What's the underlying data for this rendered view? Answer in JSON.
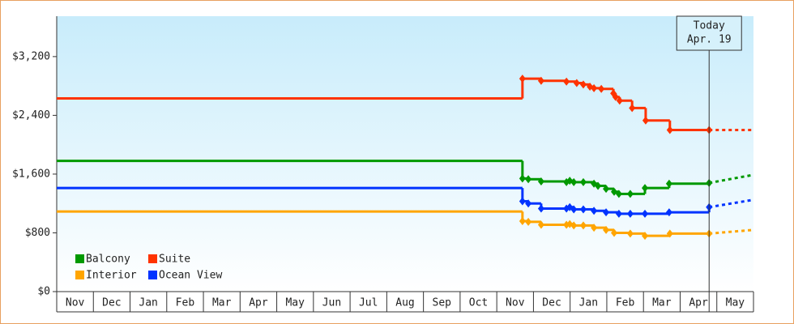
{
  "chart_data": {
    "type": "step-line",
    "months": [
      "Nov",
      "Dec",
      "Jan",
      "Feb",
      "Mar",
      "Apr",
      "May",
      "Jun",
      "Jul",
      "Aug",
      "Sep",
      "Oct",
      "Nov",
      "Dec",
      "Jan",
      "Feb",
      "Mar",
      "Apr",
      "May"
    ],
    "xlim": [
      0,
      19
    ],
    "xticks": [
      0,
      1,
      2,
      3,
      4,
      5,
      6,
      7,
      8,
      9,
      10,
      11,
      12,
      13,
      14,
      15,
      16,
      17,
      18,
      19
    ],
    "ylim": [
      0,
      3750
    ],
    "yticks": [
      {
        "value": 0,
        "label": "$0"
      },
      {
        "value": 800,
        "label": "$800"
      },
      {
        "value": 1600,
        "label": "$1,600"
      },
      {
        "value": 2400,
        "label": "$2,400"
      },
      {
        "value": 3200,
        "label": "$3,200"
      }
    ],
    "annotation": {
      "x": 17.79,
      "lines": [
        "Today",
        "Apr. 19"
      ]
    },
    "series": [
      {
        "name": "Balcony",
        "color": "#009900",
        "x": [
          0,
          12.7,
          12.86,
          13.21,
          13.9,
          13.99,
          14.1,
          14.36,
          14.65,
          14.76,
          14.98,
          15.2,
          15.33,
          15.64,
          16.04,
          16.7,
          17.79
        ],
        "values": [
          1780,
          1540,
          1530,
          1500,
          1490,
          1510,
          1490,
          1490,
          1470,
          1440,
          1400,
          1360,
          1330,
          1330,
          1410,
          1470,
          1480
        ],
        "projection": 1590
      },
      {
        "name": "Suite",
        "color": "#ff3300",
        "x": [
          0,
          12.7,
          13.21,
          13.9,
          14.18,
          14.36,
          14.54,
          14.65,
          14.85,
          15.18,
          15.24,
          15.35,
          15.69,
          16.06,
          16.72,
          17.79
        ],
        "values": [
          2630,
          2900,
          2870,
          2860,
          2840,
          2820,
          2790,
          2770,
          2760,
          2700,
          2650,
          2600,
          2500,
          2330,
          2200,
          2200
        ],
        "projection": 2200
      },
      {
        "name": "Interior",
        "color": "#ffa500",
        "x": [
          0,
          12.7,
          12.86,
          13.21,
          13.9,
          13.99,
          14.1,
          14.36,
          14.65,
          14.98,
          15.2,
          15.64,
          16.04,
          16.72,
          17.79
        ],
        "values": [
          1090,
          960,
          950,
          910,
          910,
          920,
          900,
          900,
          870,
          840,
          800,
          790,
          760,
          790,
          790
        ],
        "projection": 840
      },
      {
        "name": "Ocean View",
        "color": "#0033ff",
        "x": [
          0,
          12.7,
          12.86,
          13.21,
          13.9,
          13.99,
          14.1,
          14.36,
          14.65,
          14.98,
          15.33,
          15.64,
          16.04,
          16.7,
          17.79
        ],
        "values": [
          1410,
          1230,
          1200,
          1130,
          1130,
          1150,
          1120,
          1120,
          1100,
          1080,
          1060,
          1060,
          1060,
          1080,
          1150
        ],
        "projection": 1250
      }
    ]
  }
}
